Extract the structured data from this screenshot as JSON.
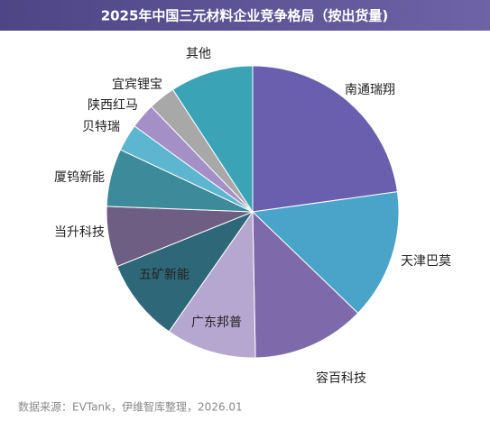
{
  "chart_data": {
    "type": "pie",
    "title": "2025年中国三元材料企业竞争格局（按出货量)",
    "source": "数据来源：EVTank，伊维智库整理，2026.01",
    "categories": [
      "南通瑞翔",
      "天津巴莫",
      "容百科技",
      "广东邦普",
      "五矿新能",
      "当升科技",
      "厦钨新能",
      "贝特瑞",
      "陕西红马",
      "宜宾锂宝",
      "其他"
    ],
    "values": [
      22.8,
      14.4,
      12.5,
      10,
      9.2,
      6.7,
      6.4,
      3,
      2.8,
      3,
      9.2
    ],
    "colors": [
      "#6a5fae",
      "#4aa3c9",
      "#7e6aaa",
      "#b6a7d1",
      "#2e6878",
      "#6f5e84",
      "#3d8a9a",
      "#5cb6d0",
      "#a58fc7",
      "#a8a8a8",
      "#3aa3b5"
    ]
  }
}
